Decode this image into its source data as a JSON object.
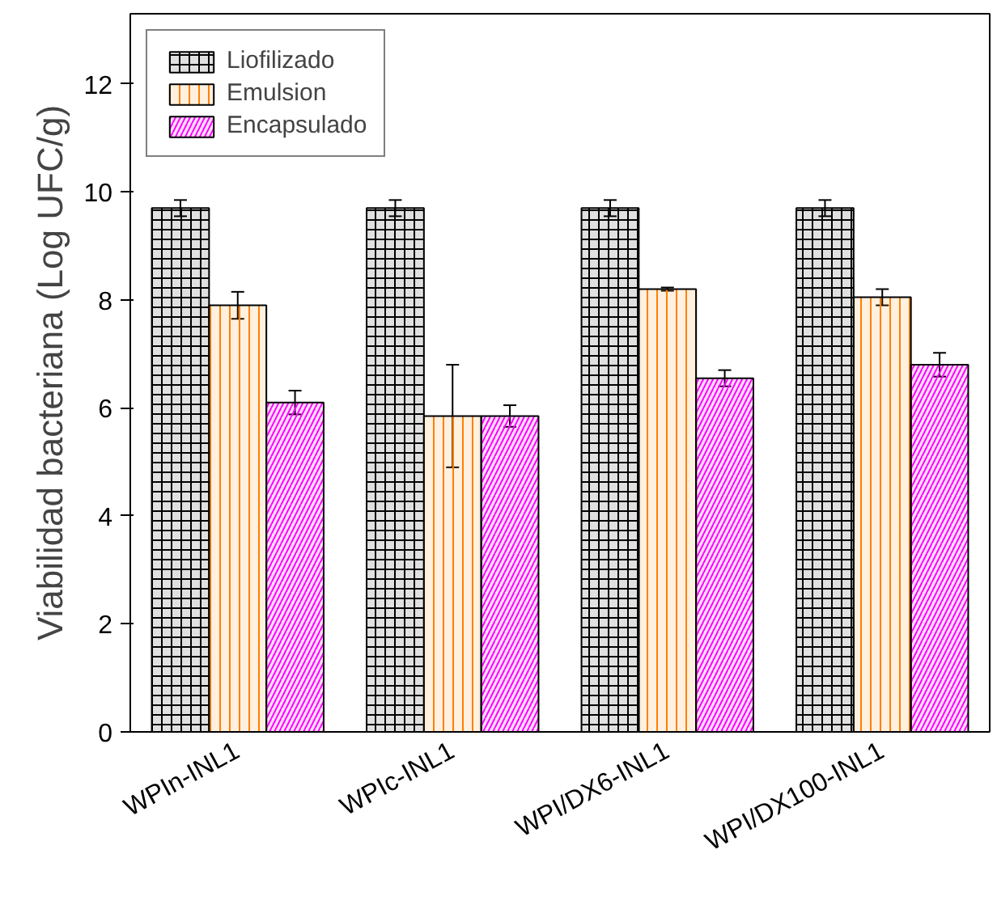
{
  "chart_data": {
    "type": "bar",
    "ylabel": "Viabilidad bacteriana (Log UFC/g)",
    "categories": [
      "WPIn-INL1",
      "WPIc-INL1",
      "WPI/DX6-INL1",
      "WPI/DX100-INL1"
    ],
    "series": [
      {
        "name": "Liofilizado",
        "color": "#000000",
        "values": [
          9.7,
          9.7,
          9.7,
          9.7
        ],
        "errors": [
          0.15,
          0.15,
          0.15,
          0.15
        ]
      },
      {
        "name": "Emulsion",
        "color": "#ff8000",
        "values": [
          7.9,
          5.85,
          8.2,
          8.05
        ],
        "errors": [
          0.25,
          0.95,
          0.03,
          0.15
        ]
      },
      {
        "name": "Encapsulado",
        "color": "#ff00ff",
        "values": [
          6.1,
          5.85,
          6.55,
          6.8
        ],
        "errors": [
          0.22,
          0.2,
          0.15,
          0.22
        ]
      }
    ],
    "ylim": [
      0,
      13.3
    ],
    "yticks": [
      0,
      2,
      4,
      6,
      8,
      10,
      12
    ],
    "legend": "top left",
    "grid": false
  }
}
